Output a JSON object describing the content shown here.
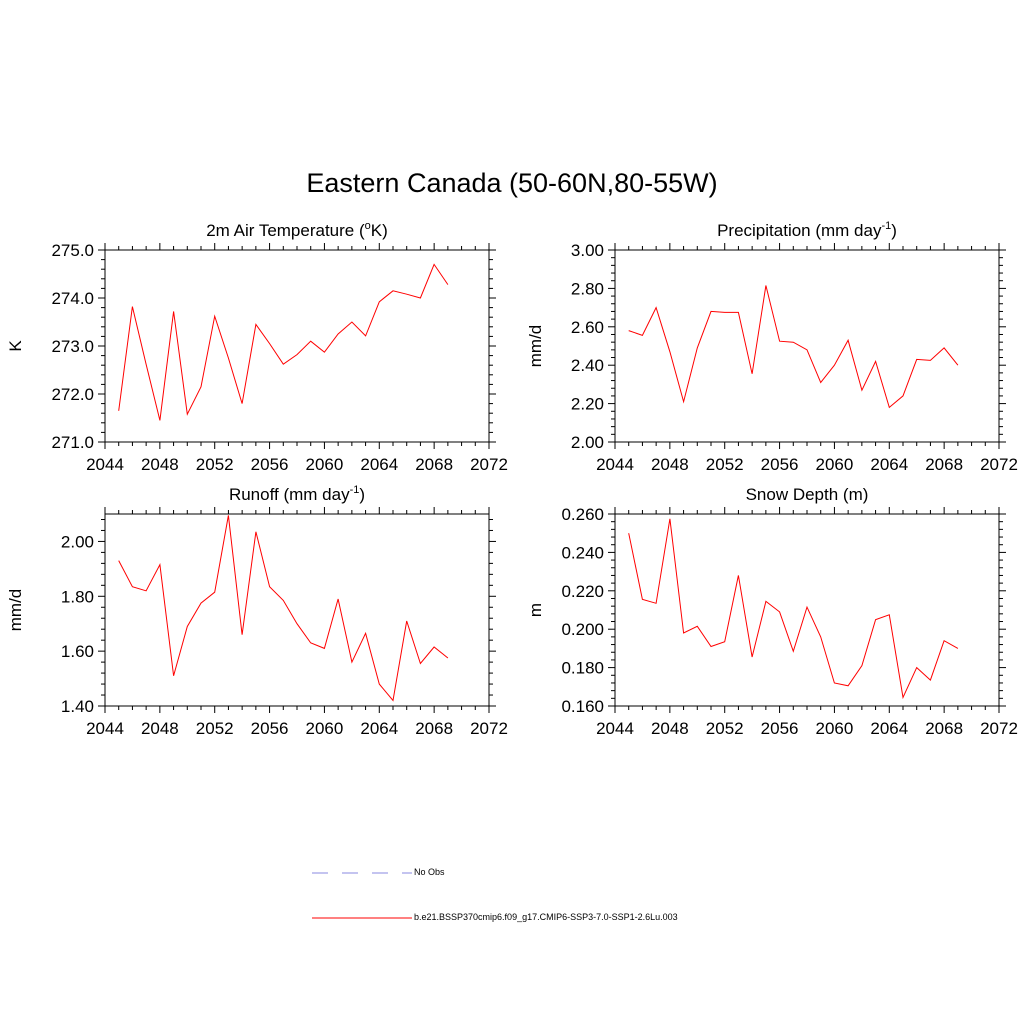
{
  "title": "Eastern Canada (50-60N,80-55W)",
  "colors": {
    "model": "#ff0000",
    "obs": "#a0a0e8",
    "axis": "#000000"
  },
  "legend": {
    "obs_label": "No Obs",
    "model_label": "b.e21.BSSP370cmip6.f09_g17.CMIP6-SSP3-7.0-SSP1-2.6Lu.003"
  },
  "chart_data": [
    {
      "type": "line",
      "title": "2m Air Temperature",
      "title_sup": "o",
      "title_parts": [
        "2m Air Temperature (",
        "K)"
      ],
      "ylabel": "K",
      "xlim": [
        2044,
        2072
      ],
      "xticks": [
        2044,
        2048,
        2052,
        2056,
        2060,
        2064,
        2068,
        2072
      ],
      "ylim": [
        271.0,
        275.0
      ],
      "yticks": [
        "271.0",
        "272.0",
        "273.0",
        "274.0",
        "275.0"
      ],
      "x": [
        2045,
        2046,
        2047,
        2048,
        2049,
        2050,
        2051,
        2052,
        2053,
        2054,
        2055,
        2056,
        2057,
        2058,
        2059,
        2060,
        2061,
        2062,
        2063,
        2064,
        2065,
        2066,
        2067,
        2068,
        2069
      ],
      "series": [
        {
          "values": [
            271.65,
            273.82,
            272.62,
            271.45,
            273.72,
            271.58,
            272.15,
            273.62,
            272.75,
            271.8,
            273.45,
            273.05,
            272.62,
            272.82,
            273.1,
            272.87,
            273.25,
            273.5,
            273.21,
            273.92,
            274.15,
            274.08,
            274.0,
            274.7,
            274.28
          ]
        }
      ]
    },
    {
      "type": "line",
      "title": "Precipitation",
      "title_sup": "-1",
      "title_parts": [
        "Precipitation (mm day",
        ")"
      ],
      "ylabel": "mm/d",
      "xlim": [
        2044,
        2072
      ],
      "xticks": [
        2044,
        2048,
        2052,
        2056,
        2060,
        2064,
        2068,
        2072
      ],
      "ylim": [
        2.0,
        3.0
      ],
      "yticks": [
        "2.00",
        "2.20",
        "2.40",
        "2.60",
        "2.80",
        "3.00"
      ],
      "x": [
        2045,
        2046,
        2047,
        2048,
        2049,
        2050,
        2051,
        2052,
        2053,
        2054,
        2055,
        2056,
        2057,
        2058,
        2059,
        2060,
        2061,
        2062,
        2063,
        2064,
        2065,
        2066,
        2067,
        2068,
        2069
      ],
      "series": [
        {
          "values": [
            2.58,
            2.555,
            2.7,
            2.47,
            2.21,
            2.49,
            2.68,
            2.675,
            2.675,
            2.355,
            2.815,
            2.525,
            2.52,
            2.48,
            2.31,
            2.4,
            2.53,
            2.27,
            2.42,
            2.18,
            2.24,
            2.43,
            2.425,
            2.49,
            2.4
          ]
        }
      ]
    },
    {
      "type": "line",
      "title": "Runoff",
      "title_sup": "-1",
      "title_parts": [
        "Runoff (mm day",
        ")"
      ],
      "ylabel": "mm/d",
      "xlim": [
        2044,
        2072
      ],
      "xticks": [
        2044,
        2048,
        2052,
        2056,
        2060,
        2064,
        2068,
        2072
      ],
      "ylim": [
        1.4,
        2.1
      ],
      "yticks": [
        "1.40",
        "1.60",
        "1.80",
        "2.00"
      ],
      "x": [
        2045,
        2046,
        2047,
        2048,
        2049,
        2050,
        2051,
        2052,
        2053,
        2054,
        2055,
        2056,
        2057,
        2058,
        2059,
        2060,
        2061,
        2062,
        2063,
        2064,
        2065,
        2066,
        2067,
        2068,
        2069
      ],
      "series": [
        {
          "values": [
            1.93,
            1.835,
            1.82,
            1.915,
            1.51,
            1.69,
            1.775,
            1.815,
            2.095,
            1.66,
            2.035,
            1.835,
            1.785,
            1.7,
            1.63,
            1.61,
            1.79,
            1.56,
            1.665,
            1.48,
            1.42,
            1.71,
            1.555,
            1.615,
            1.575
          ]
        }
      ]
    },
    {
      "type": "line",
      "title": "Snow Depth (m)",
      "title_sup": "",
      "title_parts": [
        "Snow Depth (m)",
        ""
      ],
      "ylabel": "m",
      "xlim": [
        2044,
        2072
      ],
      "xticks": [
        2044,
        2048,
        2052,
        2056,
        2060,
        2064,
        2068,
        2072
      ],
      "ylim": [
        0.16,
        0.26
      ],
      "yticks": [
        "0.160",
        "0.180",
        "0.200",
        "0.220",
        "0.240",
        "0.260"
      ],
      "x": [
        2045,
        2046,
        2047,
        2048,
        2049,
        2050,
        2051,
        2052,
        2053,
        2054,
        2055,
        2056,
        2057,
        2058,
        2059,
        2060,
        2061,
        2062,
        2063,
        2064,
        2065,
        2066,
        2067,
        2068,
        2069
      ],
      "series": [
        {
          "values": [
            0.25,
            0.2155,
            0.2135,
            0.2575,
            0.198,
            0.2015,
            0.191,
            0.1935,
            0.228,
            0.1855,
            0.2145,
            0.209,
            0.1885,
            0.2115,
            0.196,
            0.172,
            0.1705,
            0.181,
            0.205,
            0.2075,
            0.1645,
            0.18,
            0.1735,
            0.194,
            0.19
          ]
        }
      ]
    }
  ]
}
